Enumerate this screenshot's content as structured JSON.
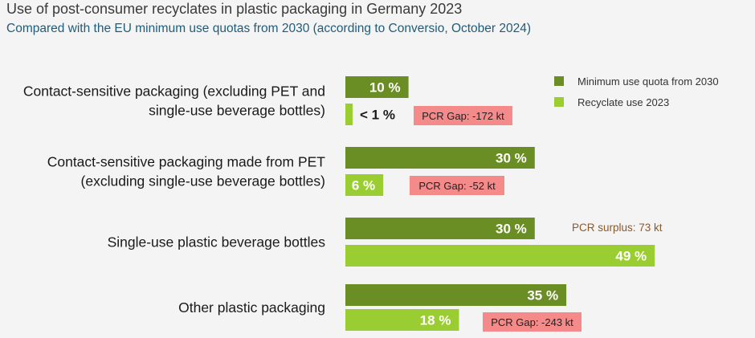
{
  "title": "Use of post-consumer recyclates in plastic packaging in Germany 2023",
  "subtitle": "Compared with the EU minimum use quotas from 2030 (according to Conversio, October 2024)",
  "colors": {
    "quota": "#6a8e23",
    "recyclate": "#9acd32",
    "gap_box": "#f48a8a",
    "surplus_text": "#8a5a2a"
  },
  "chart_data": {
    "type": "bar",
    "orientation": "horizontal",
    "unit": "%",
    "categories": [
      [
        "Contact-sensitive packaging (excluding PET and",
        "single-use beverage bottles)"
      ],
      [
        "Contact-sensitive packaging made from PET",
        "(excluding single-use beverage bottles)"
      ],
      [
        "Single-use plastic beverage bottles"
      ],
      [
        "Other plastic packaging"
      ]
    ],
    "series": [
      {
        "name": "Minimum use quota from 2030",
        "values": [
          10,
          30,
          30,
          35
        ],
        "labels": [
          "10 %",
          "30 %",
          "30 %",
          "35 %"
        ]
      },
      {
        "name": "Recyclate use 2023",
        "values": [
          0.5,
          6,
          49,
          18
        ],
        "labels": [
          "< 1 %",
          "6 %",
          "49 %",
          "18 %"
        ]
      }
    ],
    "annotations": [
      {
        "category": 0,
        "text": "PCR Gap: -172 kt",
        "kind": "gap"
      },
      {
        "category": 1,
        "text": "PCR Gap: -52 kt",
        "kind": "gap"
      },
      {
        "category": 2,
        "text": "PCR surplus: 73 kt",
        "kind": "surplus"
      },
      {
        "category": 3,
        "text": "PCR Gap: -243 kt",
        "kind": "gap"
      }
    ],
    "legend_position": "top-right",
    "grid": false,
    "xlim": [
      0,
      50
    ]
  }
}
